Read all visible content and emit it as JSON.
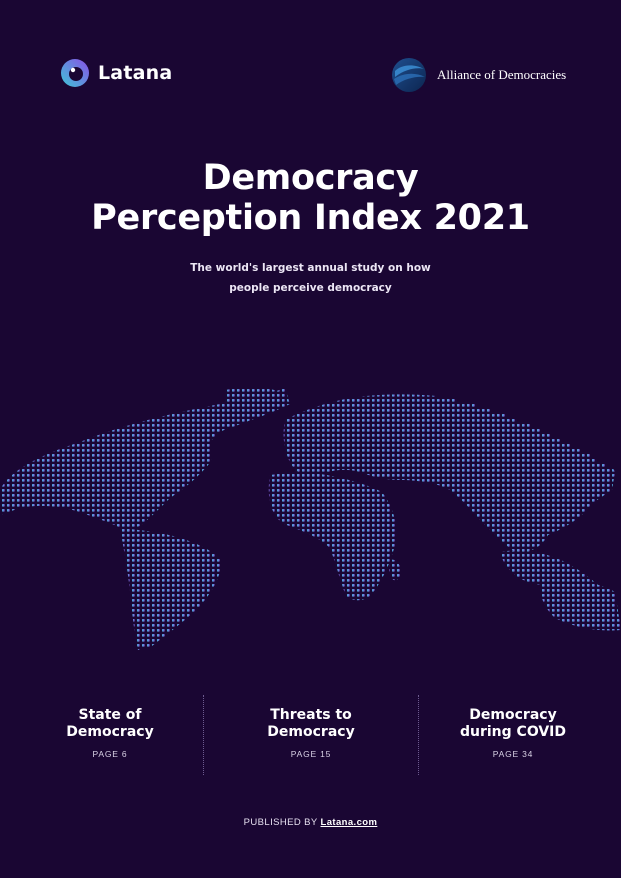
{
  "header": {
    "latana_logo_text": "Latana",
    "partner_logo_text": "Alliance of Democracies"
  },
  "cover": {
    "title_line1": "Democracy",
    "title_line2": "Perception Index 2021",
    "subtitle_line1": "The world's largest annual study on how",
    "subtitle_line2": "people perceive democracy"
  },
  "sections": [
    {
      "title_line1": "State of",
      "title_line2": "Democracy",
      "page_label": "PAGE 6"
    },
    {
      "title_line1": "Threats to",
      "title_line2": "Democracy",
      "page_label": "PAGE 15"
    },
    {
      "title_line1": "Democracy",
      "title_line2": "during COVID",
      "page_label": "PAGE 34"
    }
  ],
  "footer": {
    "published_by": "PUBLISHED BY",
    "link_text": "Latana.com"
  },
  "colors": {
    "background": "#1a0633",
    "map_left": "#3fb6d6",
    "map_right": "#8a5ce0"
  }
}
